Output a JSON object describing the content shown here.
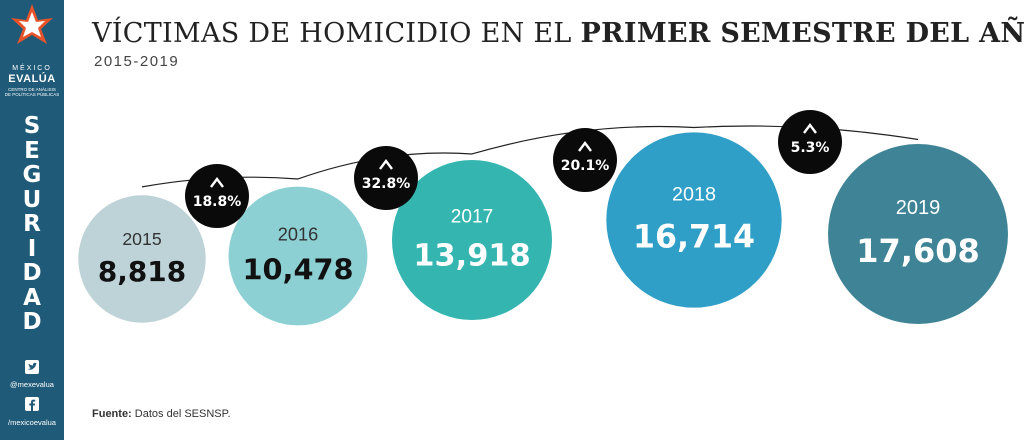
{
  "sidebar": {
    "brand_top": "MÉXICO",
    "brand_name": "EVALÚA",
    "brand_sub_1": "CENTRO DE ANÁLISIS",
    "brand_sub_2": "DE POLÍTICAS PÚBLICAS",
    "section": "SEGURIDAD",
    "twitter_handle": "@mexevalua",
    "facebook_handle": "/mexicoevalua",
    "color": "#1f5a78"
  },
  "header": {
    "title_regular": "VÍCTIMAS DE HOMICIDIO EN EL ",
    "title_bold": "PRIMER SEMESTRE DEL AÑO",
    "subtitle": "2015-2019"
  },
  "footer": {
    "source_label": "Fuente:",
    "source_text": " Datos del SESNSP."
  },
  "chart_data": {
    "type": "bubble",
    "categories": [
      "2015",
      "2016",
      "2017",
      "2018",
      "2019"
    ],
    "values": [
      8818,
      10478,
      13918,
      16714,
      17608
    ],
    "value_labels": [
      "8,818",
      "10,478",
      "13,918",
      "16,714",
      "17,608"
    ],
    "changes": [
      "18.8%",
      "32.8%",
      "20.1%",
      "5.3%"
    ],
    "colors": [
      "#bdd3d8",
      "#8dd0d4",
      "#35b5b0",
      "#2f9fc7",
      "#3f8496"
    ],
    "badge_color": "#0a0a0a",
    "trend_line": true
  }
}
